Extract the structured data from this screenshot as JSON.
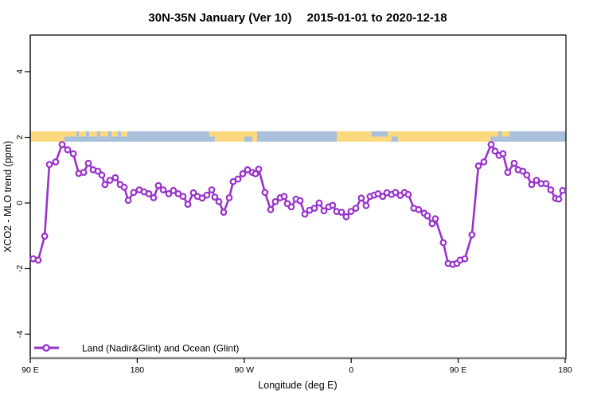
{
  "chart_data": {
    "type": "line",
    "title": "30N-35N January (Ver 10)  2015-01-01 to 2020-12-18",
    "xlabel": "Longitude (deg E)",
    "ylabel": "XCO2 - MLO trend (ppm)",
    "xlim": [
      90,
      540
    ],
    "ylim": [
      -4.7,
      5.1
    ],
    "grid": "off",
    "x_ticks": [
      {
        "value": 90,
        "label": "90 E"
      },
      {
        "value": 180,
        "label": "180"
      },
      {
        "value": 270,
        "label": "90 W"
      },
      {
        "value": 360,
        "label": "0"
      },
      {
        "value": 450,
        "label": "90 E"
      },
      {
        "value": 540,
        "label": "180"
      }
    ],
    "y_ticks": [
      {
        "value": 4,
        "label": "4"
      },
      {
        "value": 2,
        "label": "2"
      },
      {
        "value": 0,
        "label": "0"
      },
      {
        "value": -2,
        "label": "-2"
      },
      {
        "value": -4,
        "label": "-4"
      }
    ],
    "legend": {
      "label": "Land (Nadir&Glint) and Ocean (Glint)",
      "position": "bottom-left"
    },
    "series": [
      {
        "name": "Land (Nadir&Glint) and Ocean (Glint)",
        "color": "#9932CC",
        "marker": "open-circle",
        "points": [
          [
            92.5,
            -1.7
          ],
          [
            96.7,
            -1.74
          ],
          [
            102.1,
            -1.01
          ],
          [
            106.1,
            1.17
          ],
          [
            111.4,
            1.25
          ],
          [
            116.8,
            1.78
          ],
          [
            121.5,
            1.62
          ],
          [
            126.2,
            1.5
          ],
          [
            130.8,
            0.9
          ],
          [
            134.9,
            0.93
          ],
          [
            138.9,
            1.21
          ],
          [
            142.9,
            1.01
          ],
          [
            146.9,
            0.97
          ],
          [
            150.3,
            0.85
          ],
          [
            152.9,
            0.56
          ],
          [
            157.0,
            0.69
          ],
          [
            161.6,
            0.77
          ],
          [
            165.7,
            0.56
          ],
          [
            169.0,
            0.48
          ],
          [
            172.4,
            0.08
          ],
          [
            177.0,
            0.32
          ],
          [
            181.7,
            0.4
          ],
          [
            185.7,
            0.34
          ],
          [
            189.8,
            0.28
          ],
          [
            193.8,
            0.16
          ],
          [
            197.8,
            0.53
          ],
          [
            201.8,
            0.4
          ],
          [
            206.5,
            0.28
          ],
          [
            210.5,
            0.38
          ],
          [
            214.5,
            0.28
          ],
          [
            218.6,
            0.2
          ],
          [
            222.6,
            -0.04
          ],
          [
            227.3,
            0.31
          ],
          [
            230.6,
            0.2
          ],
          [
            234.6,
            0.15
          ],
          [
            238.6,
            0.24
          ],
          [
            242.7,
            0.4
          ],
          [
            245.3,
            0.18
          ],
          [
            248.7,
            0.04
          ],
          [
            252.7,
            -0.28
          ],
          [
            257.4,
            0.16
          ],
          [
            260.7,
            0.65
          ],
          [
            264.8,
            0.73
          ],
          [
            268.8,
            0.89
          ],
          [
            272.8,
            1.01
          ],
          [
            276.8,
            0.93
          ],
          [
            279.5,
            0.89
          ],
          [
            282.2,
            1.03
          ],
          [
            287.5,
            0.32
          ],
          [
            292.2,
            -0.2
          ],
          [
            296.2,
            0.04
          ],
          [
            300.3,
            0.16
          ],
          [
            303.6,
            0.2
          ],
          [
            306.3,
            -0.02
          ],
          [
            309.6,
            -0.12
          ],
          [
            313.6,
            0.12
          ],
          [
            317.0,
            0.07
          ],
          [
            321.0,
            -0.34
          ],
          [
            325.0,
            -0.22
          ],
          [
            329.0,
            -0.16
          ],
          [
            333.1,
            0.0
          ],
          [
            337.1,
            -0.24
          ],
          [
            341.1,
            -0.12
          ],
          [
            344.4,
            -0.07
          ],
          [
            347.8,
            -0.26
          ],
          [
            351.8,
            -0.28
          ],
          [
            355.8,
            -0.42
          ],
          [
            359.8,
            -0.26
          ],
          [
            363.9,
            -0.16
          ],
          [
            368.5,
            0.15
          ],
          [
            372.5,
            -0.08
          ],
          [
            375.9,
            0.2
          ],
          [
            379.3,
            0.24
          ],
          [
            382.6,
            0.28
          ],
          [
            386.6,
            0.2
          ],
          [
            390.0,
            0.31
          ],
          [
            394.0,
            0.26
          ],
          [
            397.3,
            0.32
          ],
          [
            401.3,
            0.23
          ],
          [
            404.7,
            0.32
          ],
          [
            408.0,
            0.26
          ],
          [
            412.7,
            -0.16
          ],
          [
            416.7,
            -0.2
          ],
          [
            421.4,
            -0.31
          ],
          [
            424.1,
            -0.39
          ],
          [
            428.1,
            -0.63
          ],
          [
            430.8,
            -0.48
          ],
          [
            437.5,
            -1.21
          ],
          [
            441.5,
            -1.84
          ],
          [
            445.5,
            -1.87
          ],
          [
            448.9,
            -1.84
          ],
          [
            451.6,
            -1.74
          ],
          [
            455.6,
            -1.7
          ],
          [
            461.6,
            -0.97
          ],
          [
            467.0,
            1.13
          ],
          [
            471.6,
            1.25
          ],
          [
            477.7,
            1.78
          ],
          [
            481.0,
            1.58
          ],
          [
            484.4,
            1.45
          ],
          [
            487.7,
            1.5
          ],
          [
            491.7,
            0.93
          ],
          [
            497.1,
            1.21
          ],
          [
            500.4,
            1.01
          ],
          [
            504.4,
            0.97
          ],
          [
            507.8,
            0.85
          ],
          [
            511.8,
            0.56
          ],
          [
            515.8,
            0.69
          ],
          [
            519.9,
            0.59
          ],
          [
            523.9,
            0.59
          ],
          [
            527.9,
            0.4
          ],
          [
            531.9,
            0.14
          ],
          [
            534.6,
            0.12
          ],
          [
            537.9,
            0.38
          ]
        ]
      }
    ],
    "map_band": {
      "description": "world coastline strip drawn at y = 2 ppm",
      "center_value": 2,
      "ocean_color": "#A9C0DC",
      "land_color": "#FCD97E",
      "land_segments": [
        {
          "from": 90.0,
          "to": 118.8,
          "part": "full"
        },
        {
          "from": 118.8,
          "to": 128.8,
          "part": "top"
        },
        {
          "from": 130.8,
          "to": 136.9,
          "part": "top"
        },
        {
          "from": 139.5,
          "to": 146.2,
          "part": "top"
        },
        {
          "from": 148.9,
          "to": 155.6,
          "part": "top"
        },
        {
          "from": 158.3,
          "to": 163.6,
          "part": "top"
        },
        {
          "from": 166.3,
          "to": 171.7,
          "part": "top"
        },
        {
          "from": 240.7,
          "to": 246.0,
          "part": "top"
        },
        {
          "from": 245.3,
          "to": 280.8,
          "part": "full"
        },
        {
          "from": 347.8,
          "to": 477.1,
          "part": "full"
        },
        {
          "from": 477.1,
          "to": 483.8,
          "part": "top"
        },
        {
          "from": 486.5,
          "to": 493.2,
          "part": "top"
        }
      ],
      "ocean_notches": [
        {
          "from": 270.1,
          "to": 276.8,
          "part": "bottom"
        },
        {
          "from": 377.2,
          "to": 390.6,
          "part": "top"
        },
        {
          "from": 394.0,
          "to": 399.3,
          "part": "bottom"
        }
      ]
    },
    "axis_colors": {
      "box": "#000000",
      "bottom_axis": "#7F7F7F"
    }
  }
}
